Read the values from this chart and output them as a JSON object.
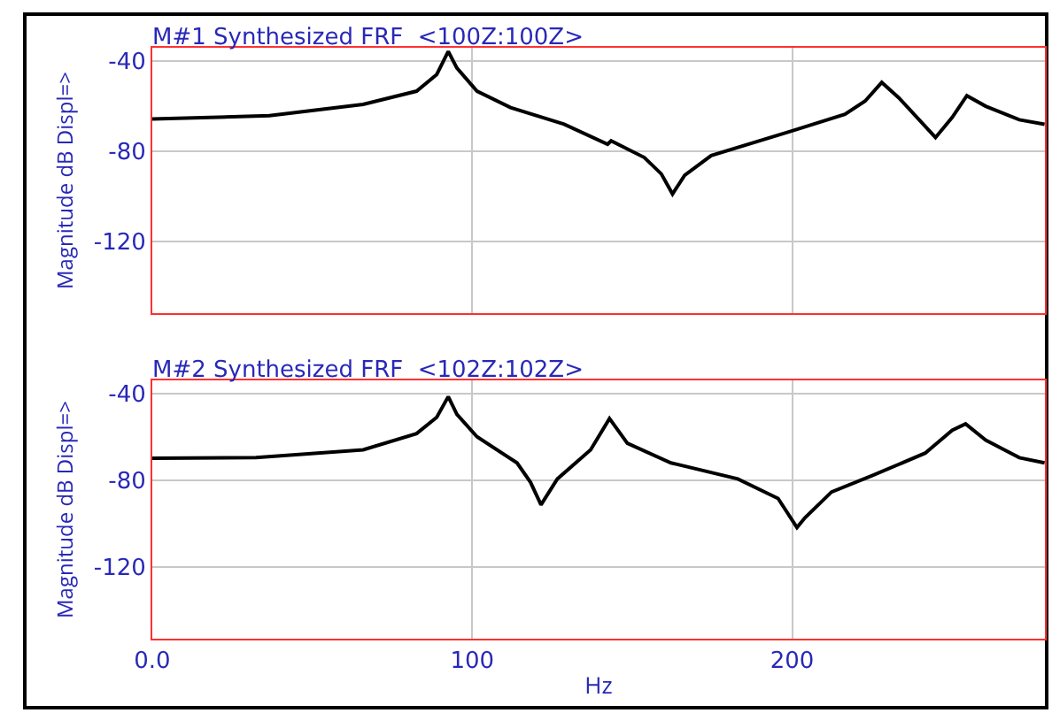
{
  "chart_data": [
    {
      "type": "line",
      "title": "M#1 Synthesized FRF  <100Z:100Z>",
      "ylabel": "Magnitude dB Displ=>",
      "x": [
        0,
        36.6,
        65.9,
        82.6,
        88.9,
        92.5,
        95.2,
        101.5,
        112,
        128.7,
        142.3,
        143.4,
        153.8,
        159.1,
        162.6,
        166.4,
        174.7,
        199.8,
        216.5,
        222.8,
        228,
        233.3,
        244.8,
        250,
        254.6,
        260.5,
        271,
        278.9
      ],
      "series": [
        {
          "color": "#000000",
          "values": [
            -65.7,
            -64.2,
            -59.2,
            -53.3,
            -45.9,
            -35.6,
            -43,
            -53.3,
            -60.6,
            -68,
            -76.9,
            -75.4,
            -82.8,
            -90.1,
            -99,
            -90.7,
            -81.9,
            -71,
            -63.6,
            -57.7,
            -49.4,
            -56.2,
            -73.9,
            -65,
            -55.3,
            -60,
            -66,
            -68
          ]
        }
      ],
      "xlim": [
        0,
        279
      ],
      "xticks": [
        0,
        100,
        200
      ],
      "ylim": [
        -152,
        -34
      ],
      "yticks": [
        -40,
        -80,
        -120
      ],
      "grid": true,
      "tick_labels": "y"
    },
    {
      "type": "line",
      "title": "M#2 Synthesized FRF  <102Z:102Z>",
      "xlabel": "Hz",
      "ylabel": "Magnitude dB Displ=>",
      "x": [
        0,
        32.4,
        65.9,
        82.6,
        88.9,
        92.5,
        95.2,
        101.5,
        114,
        118.2,
        121.5,
        126.6,
        137,
        142.9,
        148.5,
        162.1,
        183,
        195.6,
        201.5,
        204,
        212.3,
        225,
        241.6,
        250,
        254.2,
        260.5,
        271,
        278.9
      ],
      "series": [
        {
          "color": "#000000",
          "values": [
            -69.9,
            -69.6,
            -66,
            -58.5,
            -51,
            -41.5,
            -49.6,
            -60,
            -72,
            -80.9,
            -91.3,
            -79.4,
            -66,
            -51.6,
            -63,
            -72,
            -79.4,
            -88.4,
            -101.8,
            -97.3,
            -85.4,
            -77.9,
            -67.5,
            -57,
            -54,
            -61.5,
            -69.6,
            -72
          ]
        }
      ],
      "xlim": [
        0,
        279
      ],
      "xticks": [
        {
          "value": 0,
          "label": "0.0"
        },
        100,
        200
      ],
      "ylim": [
        -153,
        -34
      ],
      "yticks": [
        -40,
        -80,
        -120
      ],
      "grid": true
    }
  ]
}
